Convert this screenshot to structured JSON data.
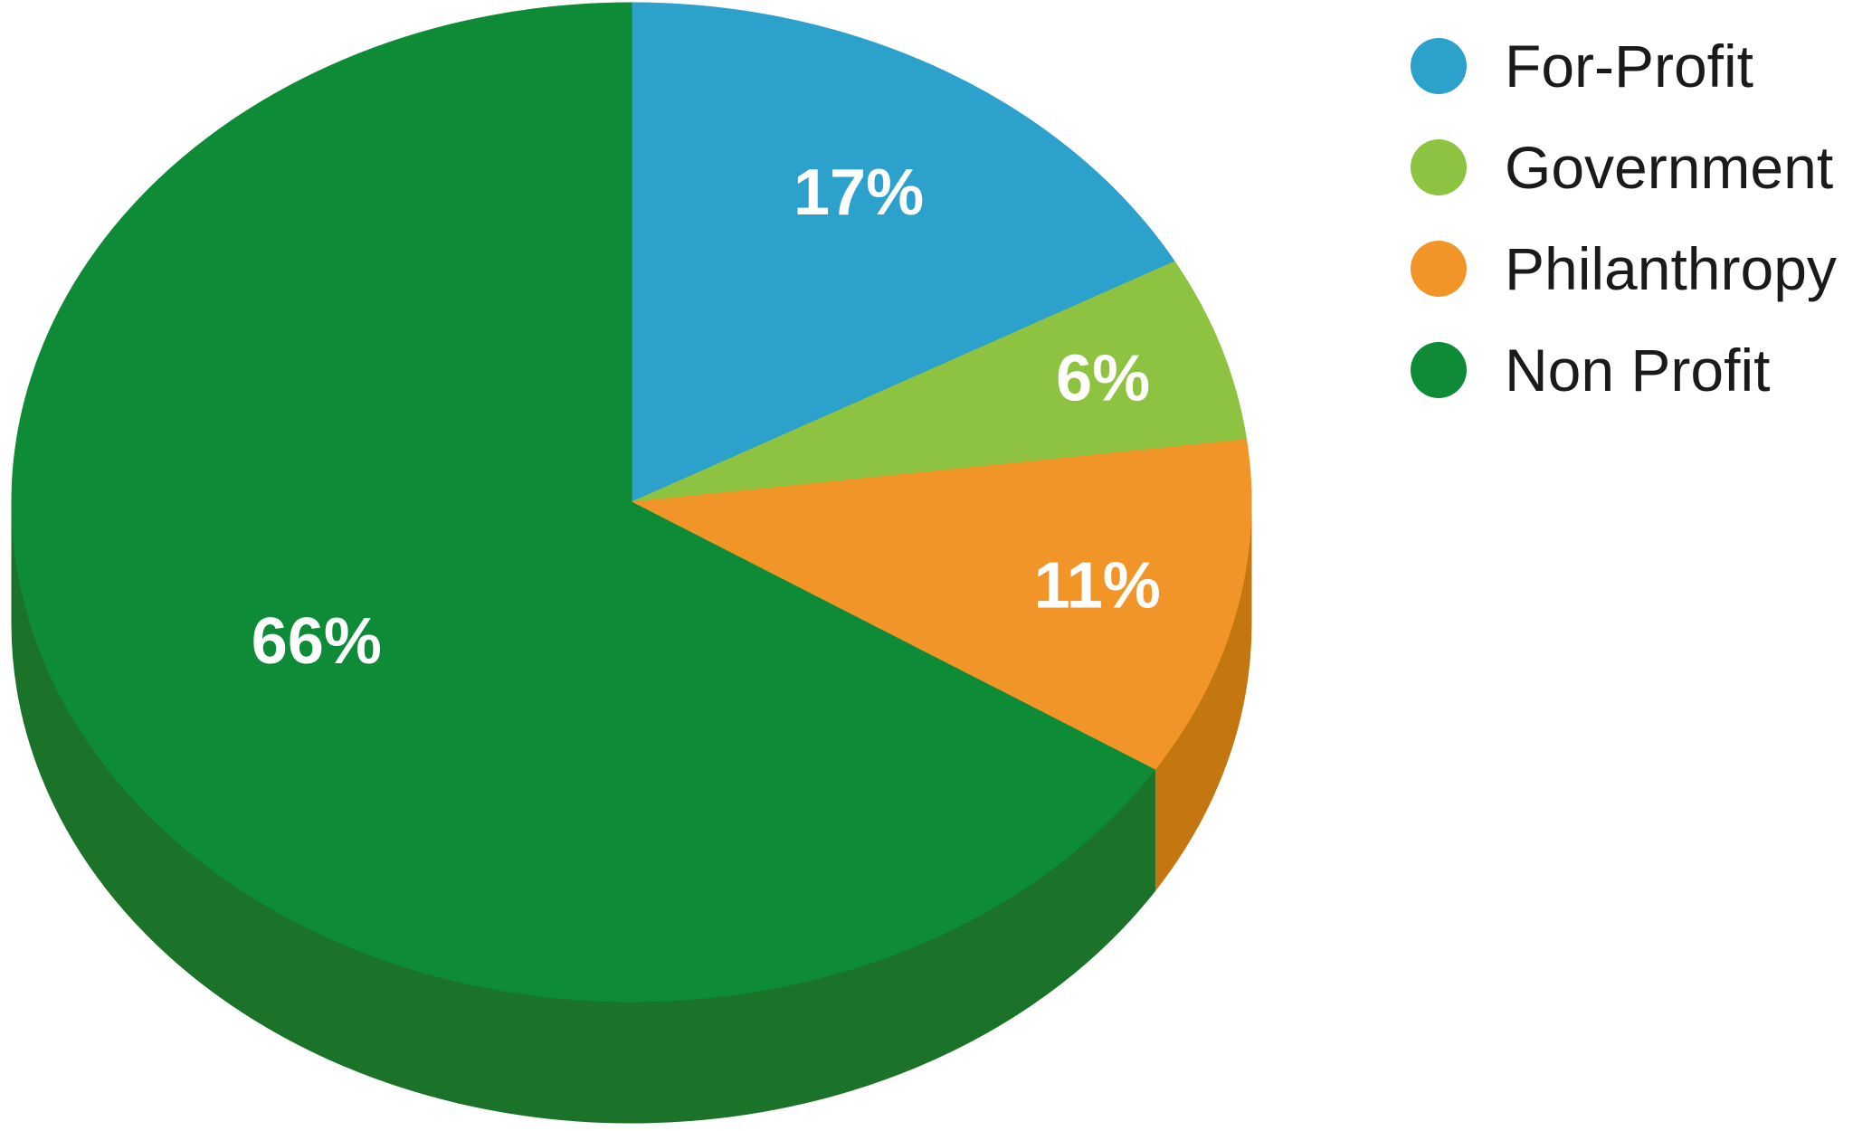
{
  "chart_data": {
    "type": "pie",
    "style": "3d",
    "title": "",
    "start_angle": "12 o'clock, clockwise",
    "categories": [
      "For-Profit",
      "Government",
      "Philanthropy",
      "Non Profit"
    ],
    "values": [
      17,
      6,
      11,
      66
    ],
    "labels": [
      "17%",
      "6%",
      "11%",
      "66%"
    ],
    "colors": {
      "For-Profit": "#2ba1cb",
      "Government": "#8dc340",
      "Philanthropy": "#f29528",
      "Non Profit": "#0e8b36"
    },
    "side_colors": {
      "For-Profit": "#217e9f",
      "Government": "#6f9a32",
      "Philanthropy": "#c47610",
      "Non Profit": "#1a7329"
    },
    "legend": {
      "position": "top-right",
      "entries": [
        "For-Profit",
        "Government",
        "Philanthropy",
        "Non Profit"
      ]
    }
  }
}
